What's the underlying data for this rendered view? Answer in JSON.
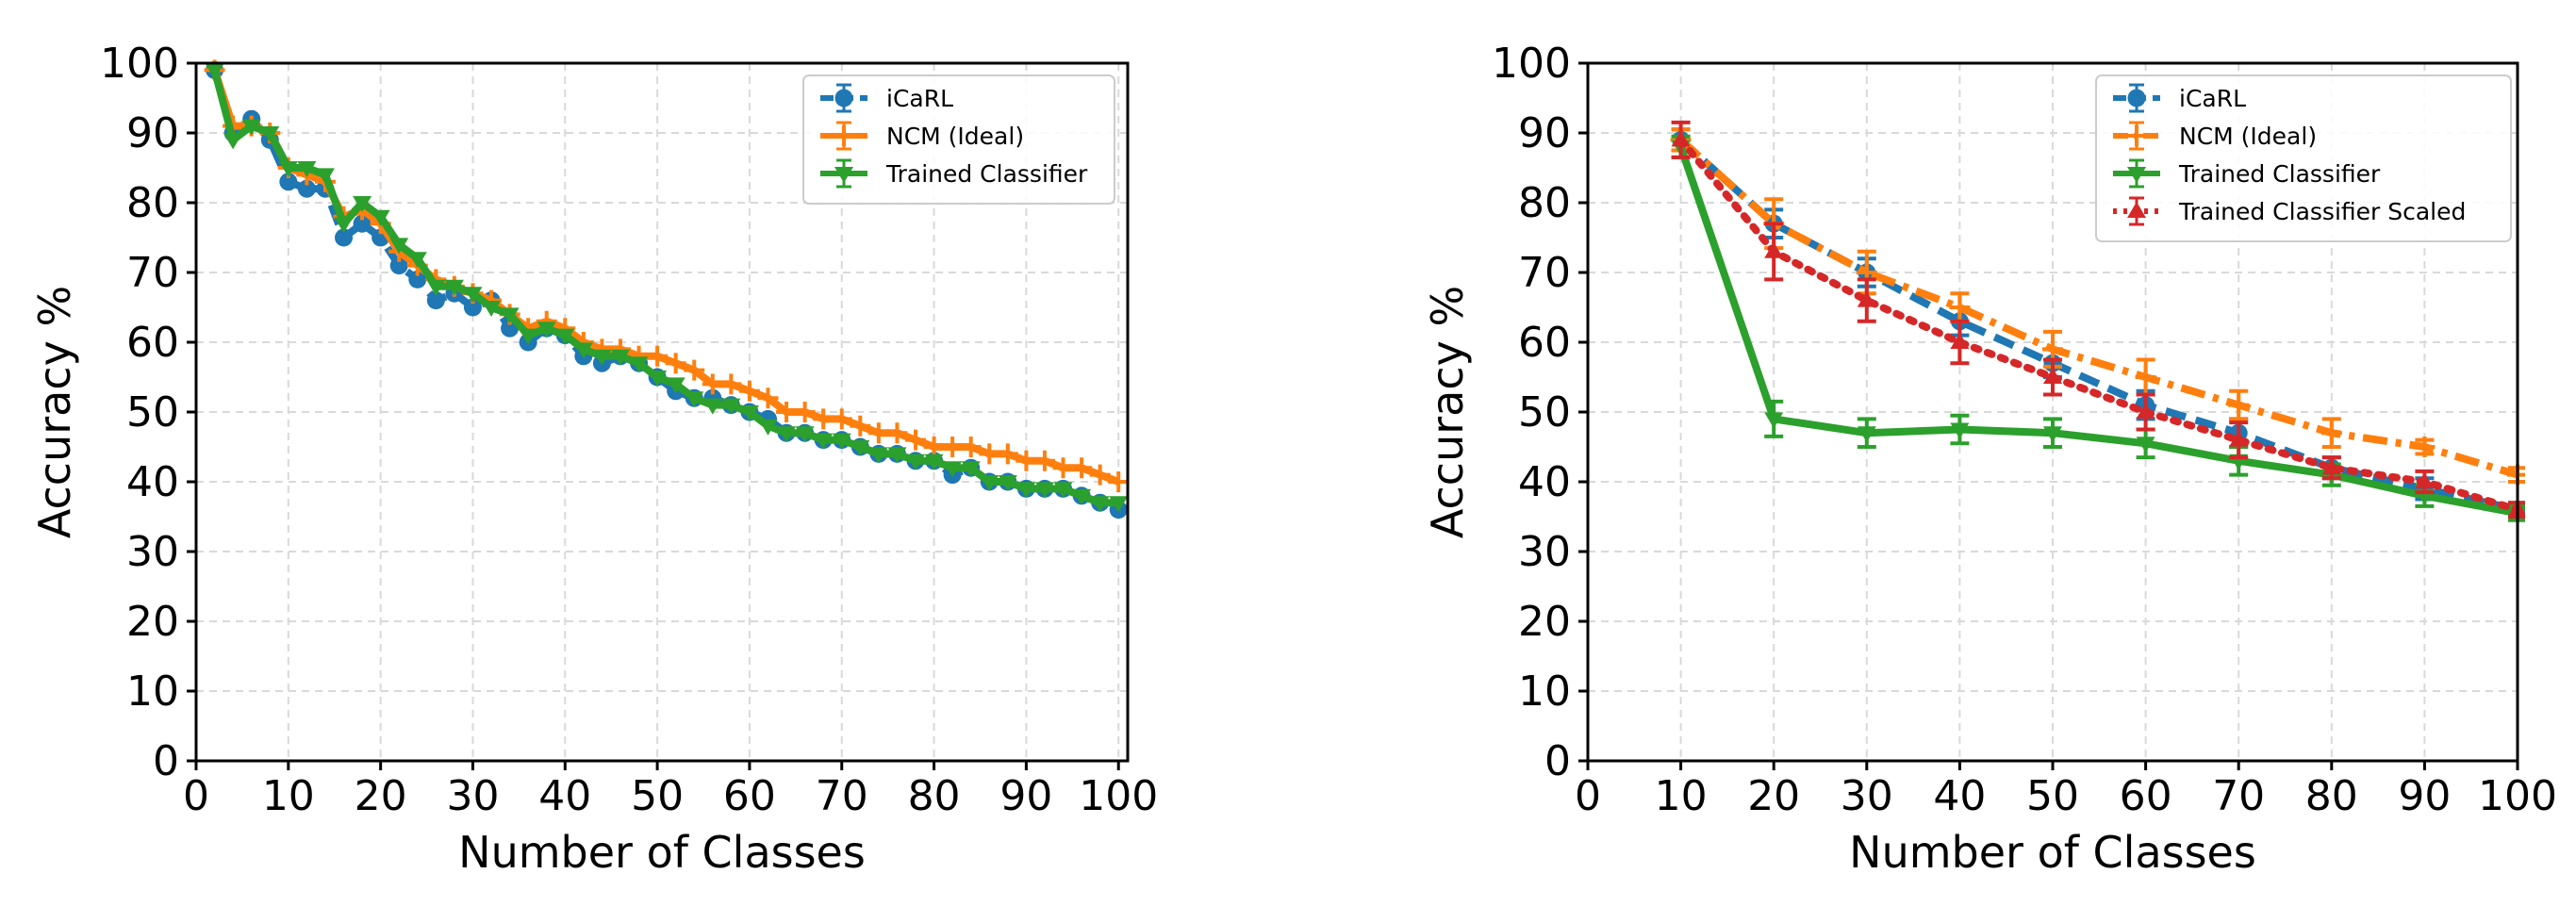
{
  "colors": {
    "icarl": "#1f77b4",
    "ncm": "#ff7f0e",
    "trained": "#2ca02c",
    "scaled": "#d62728",
    "grid": "#d9d9d9"
  },
  "chart_data": [
    {
      "type": "line",
      "xlabel": "Number of Classes",
      "ylabel": "Accuracy %",
      "xlim": [
        0,
        101
      ],
      "ylim": [
        0,
        100
      ],
      "xticks": [
        0,
        10,
        20,
        30,
        40,
        50,
        60,
        70,
        80,
        90,
        100
      ],
      "yticks": [
        0,
        10,
        20,
        30,
        40,
        50,
        60,
        70,
        80,
        90,
        100
      ],
      "xtick_labels": [
        "0",
        "10",
        "20",
        "30",
        "40",
        "50",
        "60",
        "70",
        "80",
        "90",
        "100"
      ],
      "ytick_labels": [
        "0",
        "10",
        "20",
        "30",
        "40",
        "50",
        "60",
        "70",
        "80",
        "90",
        "100"
      ],
      "grid": true,
      "legend_position": "top-right",
      "series": [
        {
          "name": "iCaRL",
          "color": "#1f77b4",
          "style": "dashed",
          "marker": "circle",
          "x": [
            2,
            4,
            6,
            8,
            10,
            12,
            14,
            16,
            18,
            20,
            22,
            24,
            26,
            28,
            30,
            32,
            34,
            36,
            38,
            40,
            42,
            44,
            46,
            48,
            50,
            52,
            54,
            56,
            58,
            60,
            62,
            64,
            66,
            68,
            70,
            72,
            74,
            76,
            78,
            80,
            82,
            84,
            86,
            88,
            90,
            92,
            94,
            96,
            98,
            100
          ],
          "y": [
            99,
            90,
            92,
            89,
            83,
            82,
            82,
            75,
            77,
            75,
            71,
            69,
            66,
            67,
            65,
            66,
            62,
            60,
            62,
            61,
            58,
            57,
            58,
            57,
            55,
            53,
            52,
            52,
            51,
            50,
            49,
            47,
            47,
            46,
            46,
            45,
            44,
            44,
            43,
            43,
            41,
            42,
            40,
            40,
            39,
            39,
            39,
            38,
            37,
            36
          ]
        },
        {
          "name": "NCM (Ideal)",
          "color": "#ff7f0e",
          "style": "solid",
          "marker": "plus",
          "x": [
            2,
            4,
            6,
            8,
            10,
            12,
            14,
            16,
            18,
            20,
            22,
            24,
            26,
            28,
            30,
            32,
            34,
            36,
            38,
            40,
            42,
            44,
            46,
            48,
            50,
            52,
            54,
            56,
            58,
            60,
            62,
            64,
            66,
            68,
            70,
            72,
            74,
            76,
            78,
            80,
            82,
            84,
            86,
            88,
            90,
            92,
            94,
            96,
            98,
            100
          ],
          "y": [
            99,
            91,
            91,
            90,
            85,
            84,
            83,
            78,
            79,
            77,
            73,
            71,
            69,
            68,
            67,
            66,
            64,
            62,
            63,
            62,
            60,
            59,
            59,
            58,
            58,
            57,
            56,
            54,
            54,
            53,
            52,
            50,
            50,
            49,
            49,
            48,
            47,
            47,
            46,
            45,
            45,
            45,
            44,
            44,
            43,
            43,
            42,
            42,
            41,
            40
          ]
        },
        {
          "name": "Trained Classifier",
          "color": "#2ca02c",
          "style": "solid",
          "marker": "triangle-down",
          "x": [
            2,
            4,
            6,
            8,
            10,
            12,
            14,
            16,
            18,
            20,
            22,
            24,
            26,
            28,
            30,
            32,
            34,
            36,
            38,
            40,
            42,
            44,
            46,
            48,
            50,
            52,
            54,
            56,
            58,
            60,
            62,
            64,
            66,
            68,
            70,
            72,
            74,
            76,
            78,
            80,
            82,
            84,
            86,
            88,
            90,
            92,
            94,
            96,
            98,
            100
          ],
          "y": [
            99,
            89,
            91,
            90,
            85,
            85,
            84,
            77,
            80,
            78,
            74,
            72,
            68,
            68,
            67,
            65,
            64,
            61,
            62,
            61,
            59,
            58,
            58,
            57,
            55,
            54,
            52,
            51,
            51,
            50,
            48,
            47,
            47,
            46,
            46,
            45,
            44,
            44,
            43,
            43,
            42,
            42,
            40,
            40,
            39,
            39,
            39,
            38,
            37,
            37
          ]
        }
      ]
    },
    {
      "type": "line",
      "xlabel": "Number of Classes",
      "ylabel": "Accuracy %",
      "xlim": [
        0,
        100
      ],
      "ylim": [
        0,
        100
      ],
      "xticks": [
        0,
        10,
        20,
        30,
        40,
        50,
        60,
        70,
        80,
        90,
        100
      ],
      "yticks": [
        0,
        10,
        20,
        30,
        40,
        50,
        60,
        70,
        80,
        90,
        100
      ],
      "xtick_labels": [
        "0",
        "10",
        "20",
        "30",
        "40",
        "50",
        "60",
        "70",
        "80",
        "90",
        "100"
      ],
      "ytick_labels": [
        "0",
        "10",
        "20",
        "30",
        "40",
        "50",
        "60",
        "70",
        "80",
        "90",
        "100"
      ],
      "grid": true,
      "legend_position": "top-right",
      "series": [
        {
          "name": "iCaRL",
          "color": "#1f77b4",
          "style": "dashed",
          "marker": "circle",
          "x": [
            10,
            20,
            30,
            40,
            50,
            60,
            70,
            80,
            90,
            100
          ],
          "y": [
            89,
            77,
            70,
            63,
            57,
            51,
            47,
            42,
            39,
            36
          ],
          "err": [
            1.5,
            2,
            2,
            2,
            2,
            2,
            2,
            1.5,
            1.5,
            1
          ]
        },
        {
          "name": "NCM (Ideal)",
          "color": "#ff7f0e",
          "style": "dashdot",
          "marker": "plus",
          "x": [
            10,
            20,
            30,
            40,
            50,
            60,
            70,
            80,
            90,
            100
          ],
          "y": [
            89,
            77,
            70,
            65,
            59,
            55,
            51,
            47,
            45,
            41
          ],
          "err": [
            1.5,
            3.5,
            3,
            2,
            2.5,
            2.5,
            2,
            2,
            1,
            1
          ]
        },
        {
          "name": "Trained Classifier",
          "color": "#2ca02c",
          "style": "solid",
          "marker": "triangle-down",
          "x": [
            10,
            20,
            30,
            40,
            50,
            60,
            70,
            80,
            90,
            100
          ],
          "y": [
            88,
            49,
            47,
            47.5,
            47,
            45.5,
            43,
            41,
            38,
            35.5
          ],
          "err": [
            1.5,
            2.5,
            2,
            2,
            2,
            2,
            2,
            1.5,
            1.5,
            1
          ]
        },
        {
          "name": "Trained Classifier Scaled",
          "color": "#d62728",
          "style": "dotted",
          "marker": "triangle-up",
          "x": [
            10,
            20,
            30,
            40,
            50,
            60,
            70,
            80,
            90,
            100
          ],
          "y": [
            89,
            73,
            66,
            60,
            55,
            50,
            46,
            42,
            40,
            36
          ],
          "err": [
            2.5,
            4,
            3,
            3,
            2.5,
            2.5,
            2.5,
            1.5,
            1.5,
            1
          ]
        }
      ]
    }
  ]
}
